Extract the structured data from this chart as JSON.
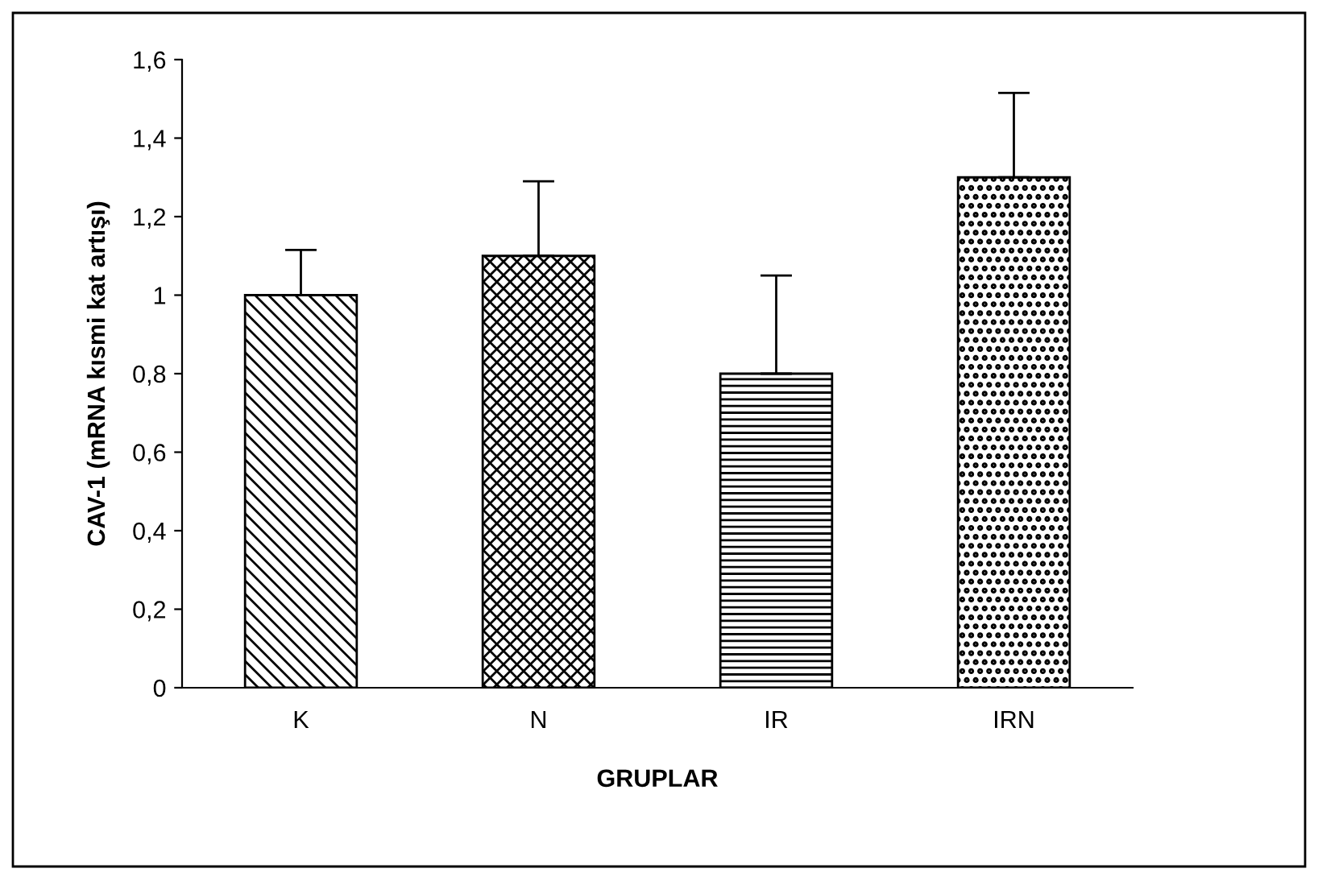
{
  "chart_data": {
    "type": "bar",
    "categories": [
      "K",
      "N",
      "IR",
      "IRN"
    ],
    "values": [
      1.0,
      1.1,
      0.8,
      1.3
    ],
    "errors": [
      [
        1.0,
        1.115
      ],
      [
        1.1,
        1.29
      ],
      [
        0.8,
        1.05
      ],
      [
        1.3,
        1.515
      ]
    ],
    "colors": [
      "#000000",
      "#000000",
      "#000000",
      "#000000"
    ],
    "xlabel": "GRUPLAR",
    "ylabel": "CAV-1 (mRNA kısmi kat artışı)",
    "ylim": [
      0,
      1.6
    ],
    "yticks": [
      0,
      {
        "value": 0.2,
        "label": "0,2"
      },
      {
        "value": 0.4,
        "label": "0,4"
      },
      {
        "value": 0.6,
        "label": "0,6"
      },
      {
        "value": 0.8,
        "label": "0,8"
      },
      1,
      {
        "value": 1.2,
        "label": "1,2"
      },
      {
        "value": 1.4,
        "label": "1,4"
      },
      {
        "value": 1.6,
        "label": "1,6"
      }
    ],
    "grid": false,
    "legend": false
  }
}
